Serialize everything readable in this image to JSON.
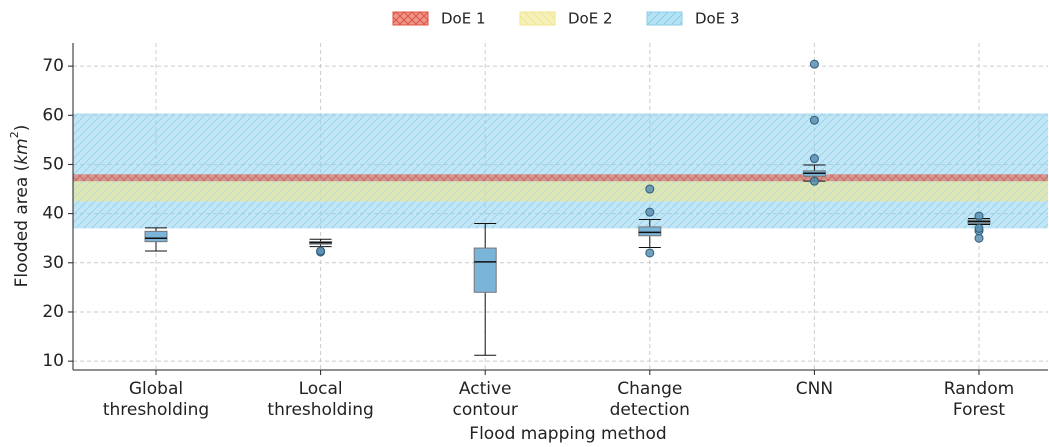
{
  "chart_data": {
    "type": "box",
    "xlabel": "Flood mapping method",
    "ylabel_parts": [
      "Flooded area (",
      "km",
      "2",
      ")"
    ],
    "categories": [
      [
        "Global",
        "thresholding"
      ],
      [
        "Local",
        "thresholding"
      ],
      [
        "Active",
        "contour"
      ],
      [
        "Change",
        "detection"
      ],
      [
        "CNN"
      ],
      [
        "Random",
        "Forest"
      ]
    ],
    "boxes": [
      {
        "whislo": 32.4,
        "q1": 34.3,
        "med": 35.0,
        "q3": 36.4,
        "whishi": 37.1,
        "fliers": []
      },
      {
        "whislo": 33.3,
        "q1": 33.8,
        "med": 34.1,
        "q3": 34.3,
        "whishi": 34.8,
        "fliers": [
          32.2,
          32.4
        ]
      },
      {
        "whislo": 11.2,
        "q1": 24.0,
        "med": 30.2,
        "q3": 33.0,
        "whishi": 38.0,
        "fliers": []
      },
      {
        "whislo": 33.1,
        "q1": 35.5,
        "med": 36.2,
        "q3": 37.3,
        "whishi": 38.8,
        "fliers": [
          32.0,
          40.3,
          45.0
        ]
      },
      {
        "whislo": 46.6,
        "q1": 47.6,
        "med": 48.2,
        "q3": 48.7,
        "whishi": 49.9,
        "fliers": [
          46.6,
          51.2,
          59.0,
          70.4
        ]
      },
      {
        "whislo": 37.8,
        "q1": 38.0,
        "med": 38.4,
        "q3": 38.7,
        "whishi": 39.0,
        "fliers": [
          35.0,
          36.5,
          37.0,
          39.5
        ]
      }
    ],
    "box_color": "#7ab4d8",
    "bands": [
      {
        "name": "DoE 3",
        "color": "#87ceeb",
        "range": [
          37.0,
          60.4
        ]
      },
      {
        "name": "DoE 2",
        "color": "#f0e68c",
        "range": [
          42.5,
          46.6
        ]
      },
      {
        "name": "DoE 1",
        "color": "#e0523f",
        "range": [
          46.6,
          48.0
        ]
      }
    ],
    "legend_order": [
      2,
      1,
      0
    ],
    "ylim": [
      8.2,
      74.7
    ],
    "yticks": [
      10,
      20,
      30,
      40,
      50,
      60,
      70
    ],
    "grid": true
  }
}
